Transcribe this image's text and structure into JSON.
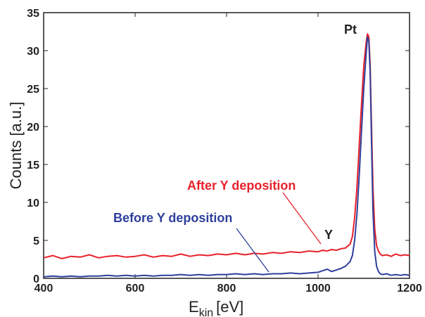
{
  "chart_data": {
    "type": "line",
    "xlabel_main": "E",
    "xlabel_sub": "kin",
    "xlabel_unit": "[eV]",
    "ylabel": "Counts [a.u.]",
    "xlim": [
      400,
      1200
    ],
    "ylim": [
      0,
      35
    ],
    "x_ticks": [
      400,
      600,
      800,
      1000,
      1200
    ],
    "y_ticks": [
      0,
      5,
      10,
      15,
      20,
      25,
      30,
      35
    ],
    "grid": false,
    "series": [
      {
        "name": "After Y deposition",
        "color": "#e8212b",
        "x": [
          400,
          420,
          440,
          460,
          480,
          500,
          520,
          540,
          560,
          580,
          600,
          620,
          640,
          660,
          680,
          700,
          720,
          740,
          760,
          780,
          800,
          820,
          840,
          860,
          880,
          900,
          920,
          940,
          960,
          980,
          1000,
          1010,
          1020,
          1030,
          1040,
          1050,
          1060,
          1070,
          1075,
          1080,
          1085,
          1090,
          1095,
          1100,
          1105,
          1108,
          1111,
          1114,
          1117,
          1120,
          1124,
          1128,
          1132,
          1136,
          1140,
          1150,
          1160,
          1170,
          1180,
          1190,
          1200
        ],
        "values": [
          2.7,
          3.0,
          2.6,
          2.9,
          2.8,
          3.1,
          2.7,
          2.9,
          3.0,
          2.8,
          2.9,
          3.1,
          2.8,
          3.0,
          2.9,
          3.2,
          2.9,
          3.1,
          3.0,
          3.2,
          3.1,
          3.3,
          3.1,
          3.3,
          3.2,
          3.4,
          3.3,
          3.5,
          3.4,
          3.6,
          3.5,
          3.7,
          3.6,
          3.8,
          3.7,
          3.9,
          4.0,
          4.5,
          5.5,
          8.0,
          12.0,
          17.5,
          23.0,
          28.0,
          31.0,
          32.2,
          31.8,
          28.0,
          20.0,
          12.0,
          6.5,
          4.3,
          3.6,
          3.2,
          3.0,
          3.1,
          2.9,
          3.2,
          3.0,
          3.1,
          3.0
        ]
      },
      {
        "name": "Before Y deposition",
        "color": "#2e3f9c",
        "x": [
          400,
          420,
          440,
          460,
          480,
          500,
          520,
          540,
          560,
          580,
          600,
          620,
          640,
          660,
          680,
          700,
          720,
          740,
          760,
          780,
          800,
          820,
          840,
          860,
          880,
          900,
          920,
          940,
          960,
          980,
          1000,
          1010,
          1020,
          1030,
          1040,
          1050,
          1060,
          1070,
          1075,
          1080,
          1085,
          1090,
          1095,
          1100,
          1105,
          1108,
          1111,
          1114,
          1117,
          1120,
          1124,
          1128,
          1132,
          1136,
          1140,
          1150,
          1160,
          1170,
          1180,
          1190,
          1200
        ],
        "values": [
          0.2,
          0.3,
          0.2,
          0.3,
          0.2,
          0.3,
          0.3,
          0.4,
          0.3,
          0.4,
          0.3,
          0.4,
          0.3,
          0.4,
          0.4,
          0.5,
          0.4,
          0.5,
          0.4,
          0.5,
          0.5,
          0.6,
          0.5,
          0.6,
          0.5,
          0.6,
          0.6,
          0.7,
          0.6,
          0.7,
          0.8,
          1.0,
          1.2,
          0.9,
          1.1,
          1.3,
          1.6,
          2.2,
          3.0,
          5.0,
          8.5,
          13.5,
          19.5,
          25.0,
          29.5,
          31.8,
          31.2,
          27.0,
          18.0,
          9.0,
          3.5,
          1.6,
          0.9,
          0.6,
          0.5,
          0.6,
          0.4,
          0.5,
          0.4,
          0.5,
          0.4
        ]
      }
    ],
    "annotations": [
      {
        "text": "After Y deposition",
        "color": "#e8212b"
      },
      {
        "text": "Before Y deposition",
        "color": "#2e3f9c"
      },
      {
        "text": "Y",
        "color": "#222222"
      },
      {
        "text": "Pt",
        "color": "#222222"
      }
    ]
  }
}
